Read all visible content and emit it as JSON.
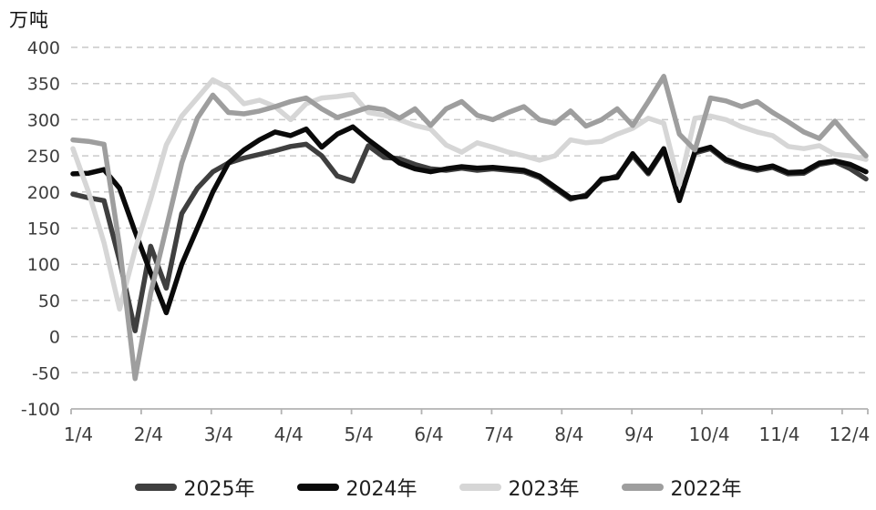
{
  "chart": {
    "title_unit_label": "万吨",
    "background": "#ffffff",
    "colors": {
      "grid": "#c9c9c9",
      "axis": "#b3b3b3",
      "tick_text": "#3d3d3d",
      "title_text": "#111111",
      "legend_text": "#1f1f1f"
    }
  },
  "chart_data": {
    "type": "line",
    "title": "万吨",
    "xlabel": "",
    "ylabel": "万吨",
    "ylim": [
      -100,
      400
    ],
    "y_ticks": [
      400,
      350,
      300,
      250,
      200,
      150,
      100,
      50,
      0,
      -50,
      -100
    ],
    "x_tick_labels": [
      "1/4",
      "2/4",
      "3/4",
      "4/4",
      "5/4",
      "6/4",
      "7/4",
      "8/4",
      "9/4",
      "10/4",
      "11/4",
      "12/4"
    ],
    "x_unit": "weekly points, Jan-Dec (52 points per series)",
    "grid": "horizontal dashed",
    "legend_position": "bottom",
    "series": [
      {
        "name": "2025年",
        "color": "#3f3f3f",
        "values": [
          197,
          192,
          188,
          105,
          8,
          125,
          67,
          170,
          205,
          228,
          240,
          247,
          252,
          257,
          263,
          266,
          250,
          222,
          215,
          264,
          248,
          246,
          238,
          232,
          230,
          233,
          230,
          232,
          230,
          228,
          220,
          205,
          190,
          196,
          216,
          222,
          250,
          225,
          258,
          190,
          254,
          260,
          243,
          235,
          230,
          234,
          225,
          226,
          238,
          242,
          232,
          218
        ]
      },
      {
        "name": "2024年",
        "color": "#0a0a0a",
        "values": [
          225,
          226,
          231,
          205,
          145,
          88,
          33,
          100,
          150,
          200,
          240,
          258,
          272,
          283,
          278,
          287,
          262,
          280,
          290,
          272,
          256,
          240,
          232,
          228,
          232,
          235,
          233,
          234,
          232,
          230,
          222,
          207,
          192,
          194,
          218,
          220,
          253,
          227,
          260,
          188,
          256,
          262,
          245,
          237,
          232,
          236,
          227,
          228,
          240,
          243,
          238,
          228
        ]
      },
      {
        "name": "2023年",
        "color": "#d6d6d6",
        "values": [
          260,
          200,
          130,
          38,
          120,
          190,
          265,
          305,
          330,
          355,
          344,
          322,
          327,
          318,
          300,
          322,
          330,
          332,
          335,
          310,
          306,
          300,
          292,
          287,
          265,
          255,
          268,
          262,
          255,
          250,
          244,
          250,
          272,
          268,
          270,
          280,
          288,
          302,
          295,
          210,
          302,
          305,
          300,
          290,
          283,
          278,
          263,
          260,
          264,
          252,
          250,
          245
        ]
      },
      {
        "name": "2022年",
        "color": "#9e9e9e",
        "values": [
          272,
          270,
          266,
          125,
          -58,
          60,
          150,
          240,
          302,
          334,
          310,
          308,
          312,
          318,
          325,
          330,
          315,
          303,
          310,
          317,
          314,
          302,
          315,
          292,
          315,
          325,
          306,
          300,
          310,
          318,
          300,
          295,
          312,
          291,
          300,
          315,
          292,
          325,
          360,
          280,
          258,
          330,
          326,
          318,
          325,
          310,
          297,
          283,
          274,
          298,
          273,
          250
        ]
      }
    ]
  }
}
